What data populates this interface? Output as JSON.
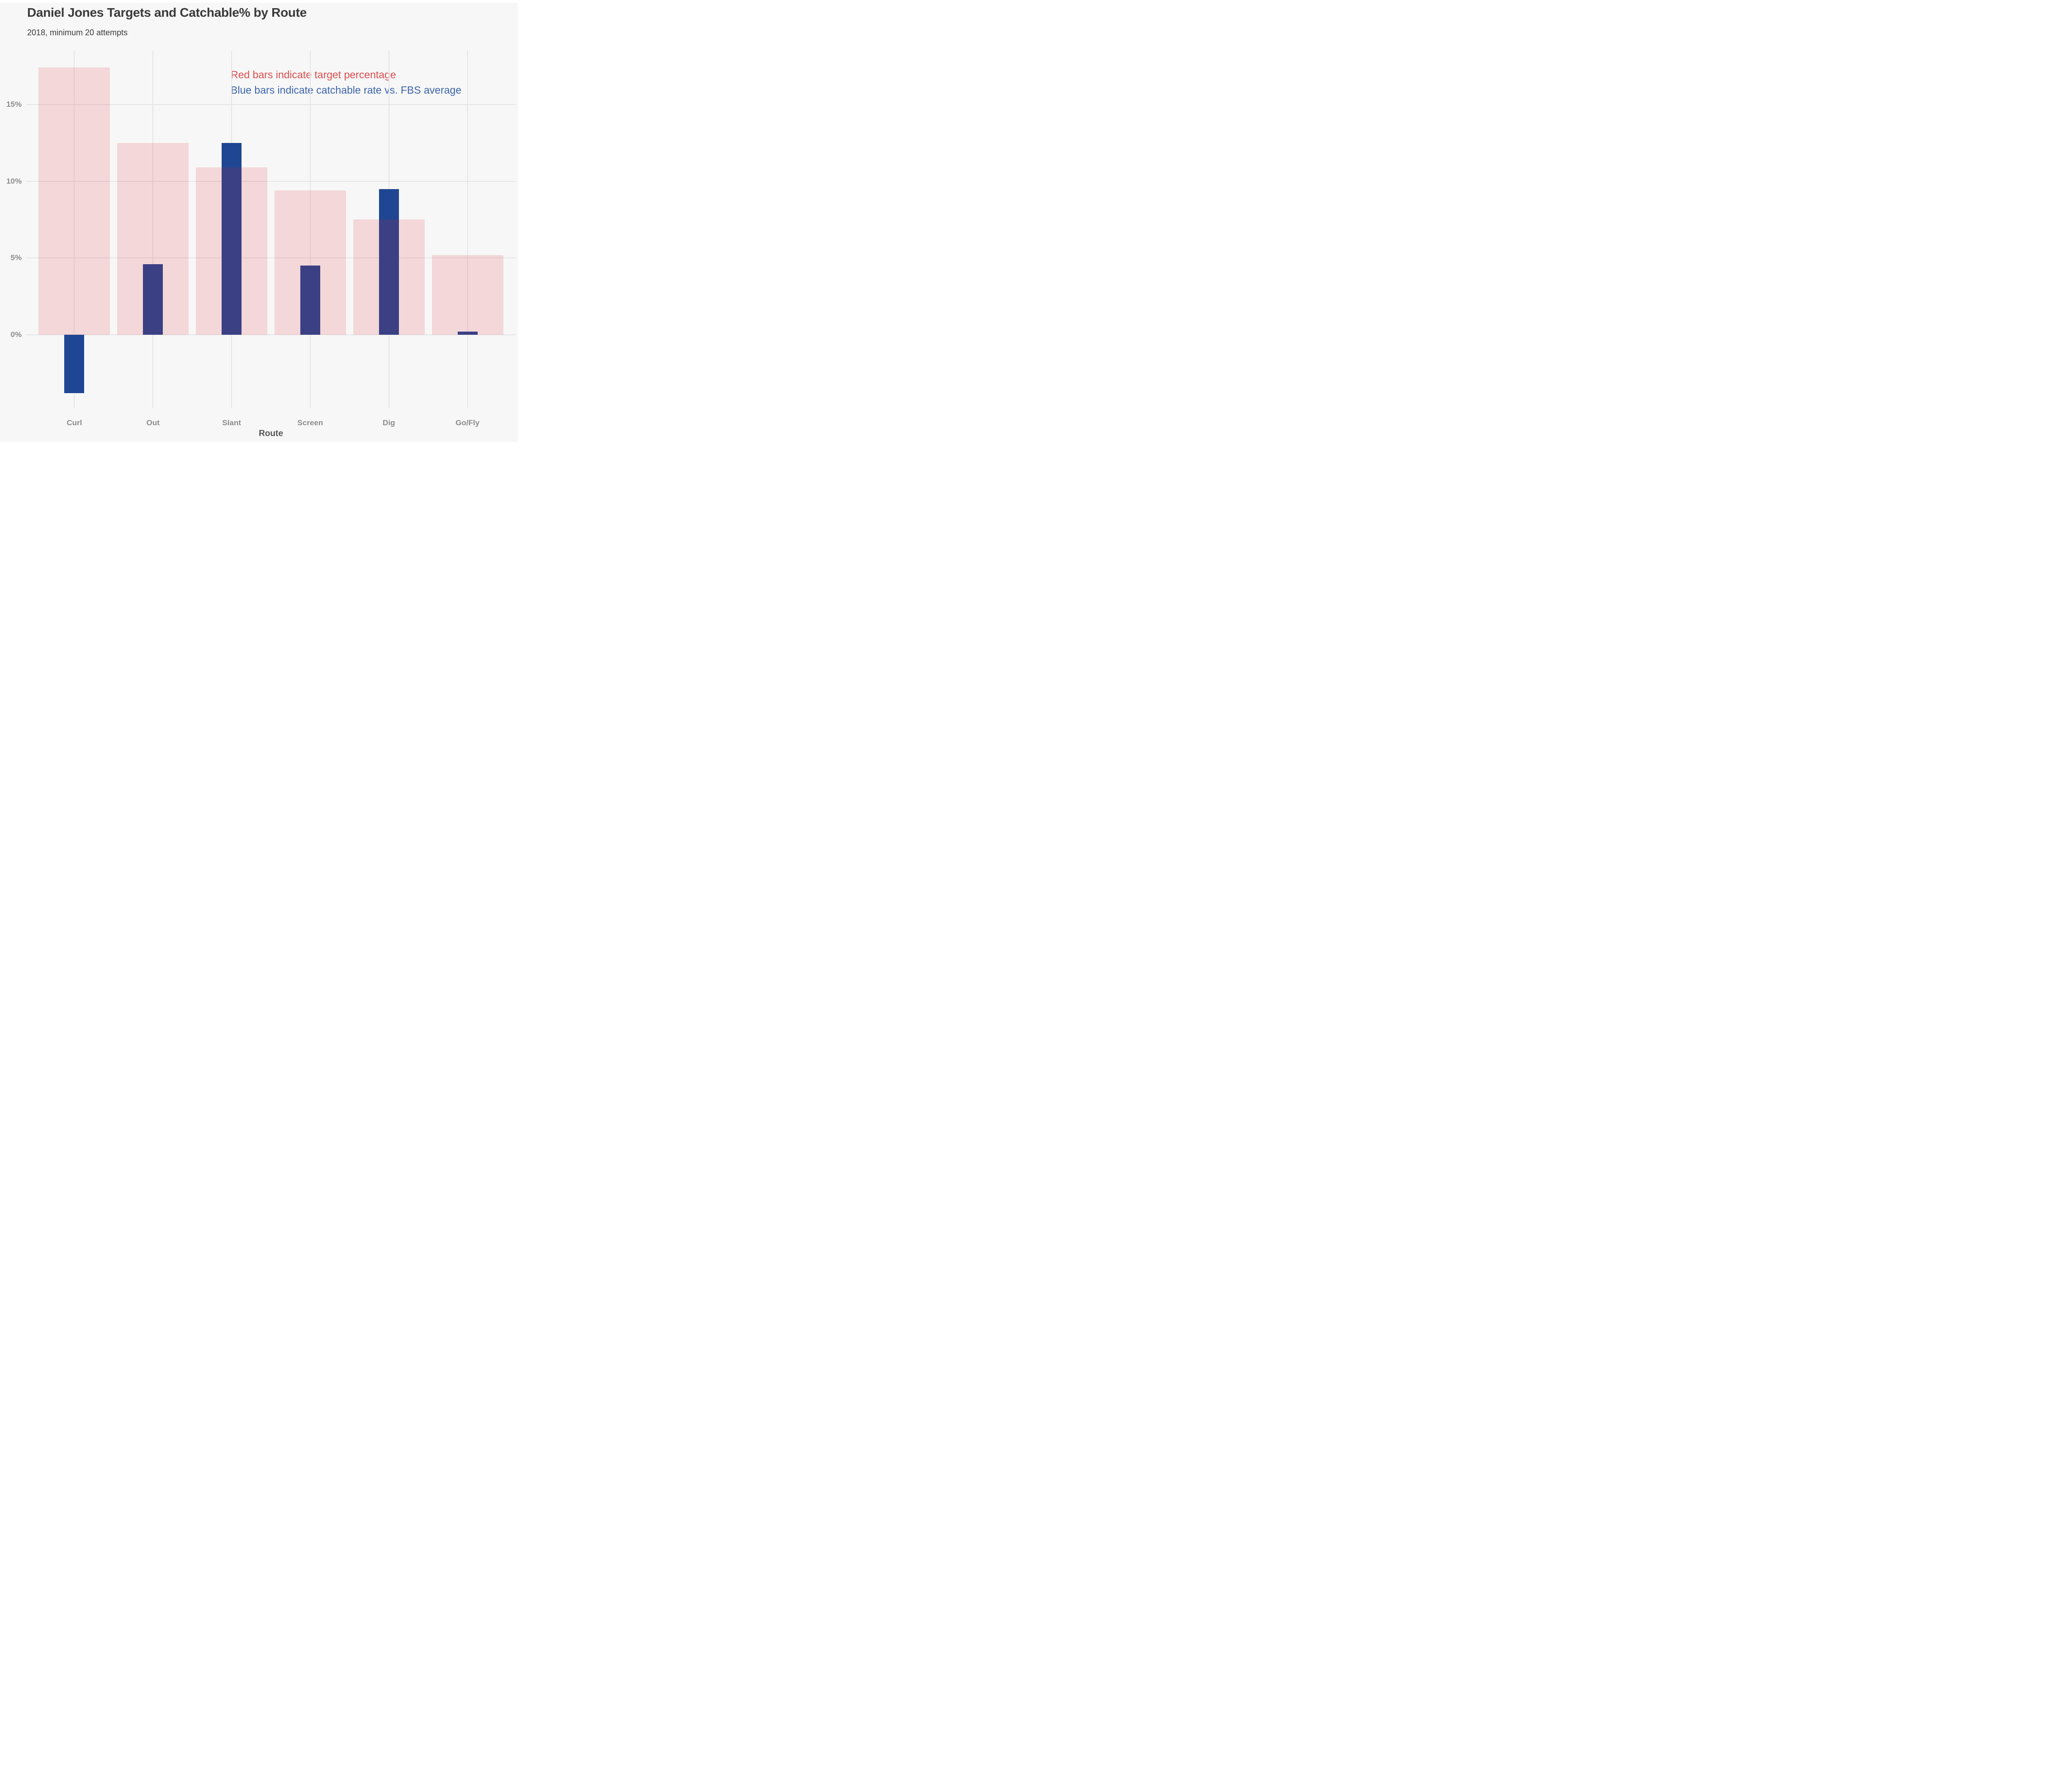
{
  "header": {
    "title": "Daniel Jones Targets and Catchable% by Route",
    "subtitle": "2018, minimum 20 attempts"
  },
  "annotations": {
    "red_note": "Red bars indicate target percentage",
    "blue_note": "Blue bars indicate catchable rate vs. FBS average",
    "red_color": "#DC4E4E",
    "blue_color": "#3C64AD"
  },
  "chart_data": {
    "type": "bar",
    "title": "Daniel Jones Targets and Catchable% by Route",
    "subtitle": "2018, minimum 20 attempts",
    "categories": [
      "Curl",
      "Out",
      "Slant",
      "Screen",
      "Dig",
      "Go/Fly"
    ],
    "series": [
      {
        "key": "target",
        "name": "Target percentage",
        "values": [
          17.4,
          12.5,
          10.9,
          9.4,
          7.5,
          5.2
        ],
        "color": "rgba(219,32,46,0.15)",
        "width_frac": 0.91
      },
      {
        "key": "catchable",
        "name": "Catchable rate vs. FBS average",
        "values": [
          -3.8,
          4.6,
          12.5,
          4.5,
          9.5,
          0.2
        ],
        "color": "#1F4693",
        "width_frac": 0.253
      }
    ],
    "xlabel": "Route",
    "ylabel": "",
    "y_ticks": [
      0,
      5,
      10,
      15
    ],
    "y_tick_labels": [
      "0%",
      "5%",
      "10%",
      "15%"
    ],
    "ylim": [
      -4.8,
      18.5
    ],
    "grid": true,
    "legend_position": "top-right-inside",
    "background_color": "#F7F7F7",
    "gridline_color": "#E5E5E7"
  }
}
